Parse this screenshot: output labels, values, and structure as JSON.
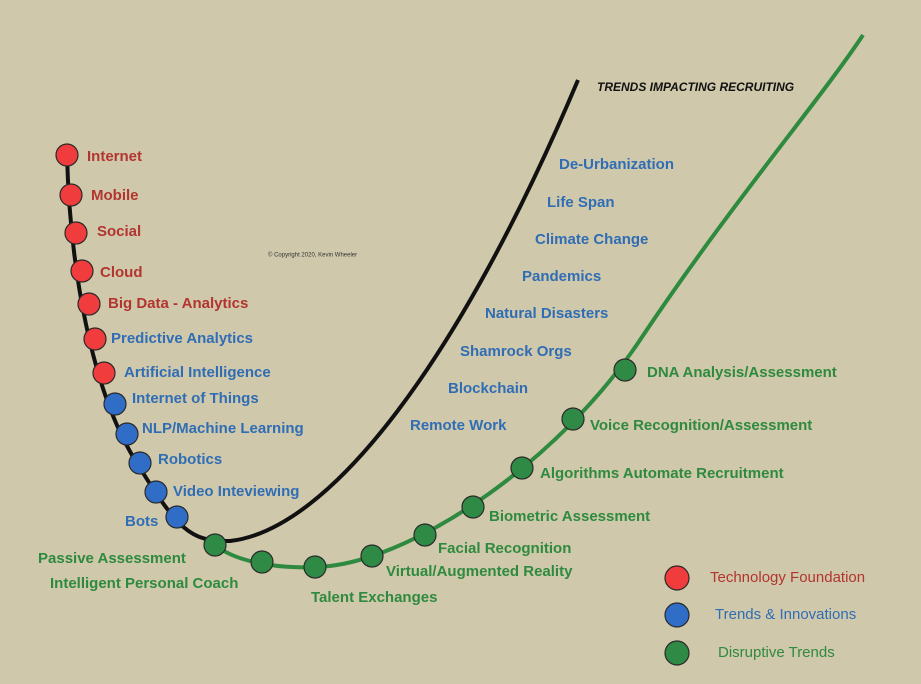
{
  "title": "TRENDS IMPACTING RECRUITING",
  "copyright": "© Copyright 2020, Kevin Wheeler",
  "technology_foundation": [
    "Internet",
    "Mobile",
    "Social",
    "Cloud",
    "Big Data - Analytics",
    "Predictive Analytics",
    "Artificial Intelligence"
  ],
  "trends_innovations": [
    "Internet of Things",
    "NLP/Machine Learning",
    "Robotics",
    "Video Inteviewing",
    "Bots"
  ],
  "disruptive_trends": [
    "Passive Assessment",
    "Intelligent Personal Coach",
    "Talent Exchanges",
    "Virtual/Augmented Reality",
    "Facial Recognition",
    "Biometric Assessment",
    "Algorithms Automate Recruitment",
    "Voice Recognition/Assessment",
    "DNA Analysis/Assessment"
  ],
  "external_trends": [
    "De-Urbanization",
    "Life Span",
    "Climate Change",
    "Pandemics",
    "Natural Disasters",
    "Shamrock Orgs",
    "Blockchain",
    "Remote Work"
  ],
  "legend": [
    "Technology Foundation",
    "Trends & Innovations",
    "Disruptive Trends"
  ]
}
